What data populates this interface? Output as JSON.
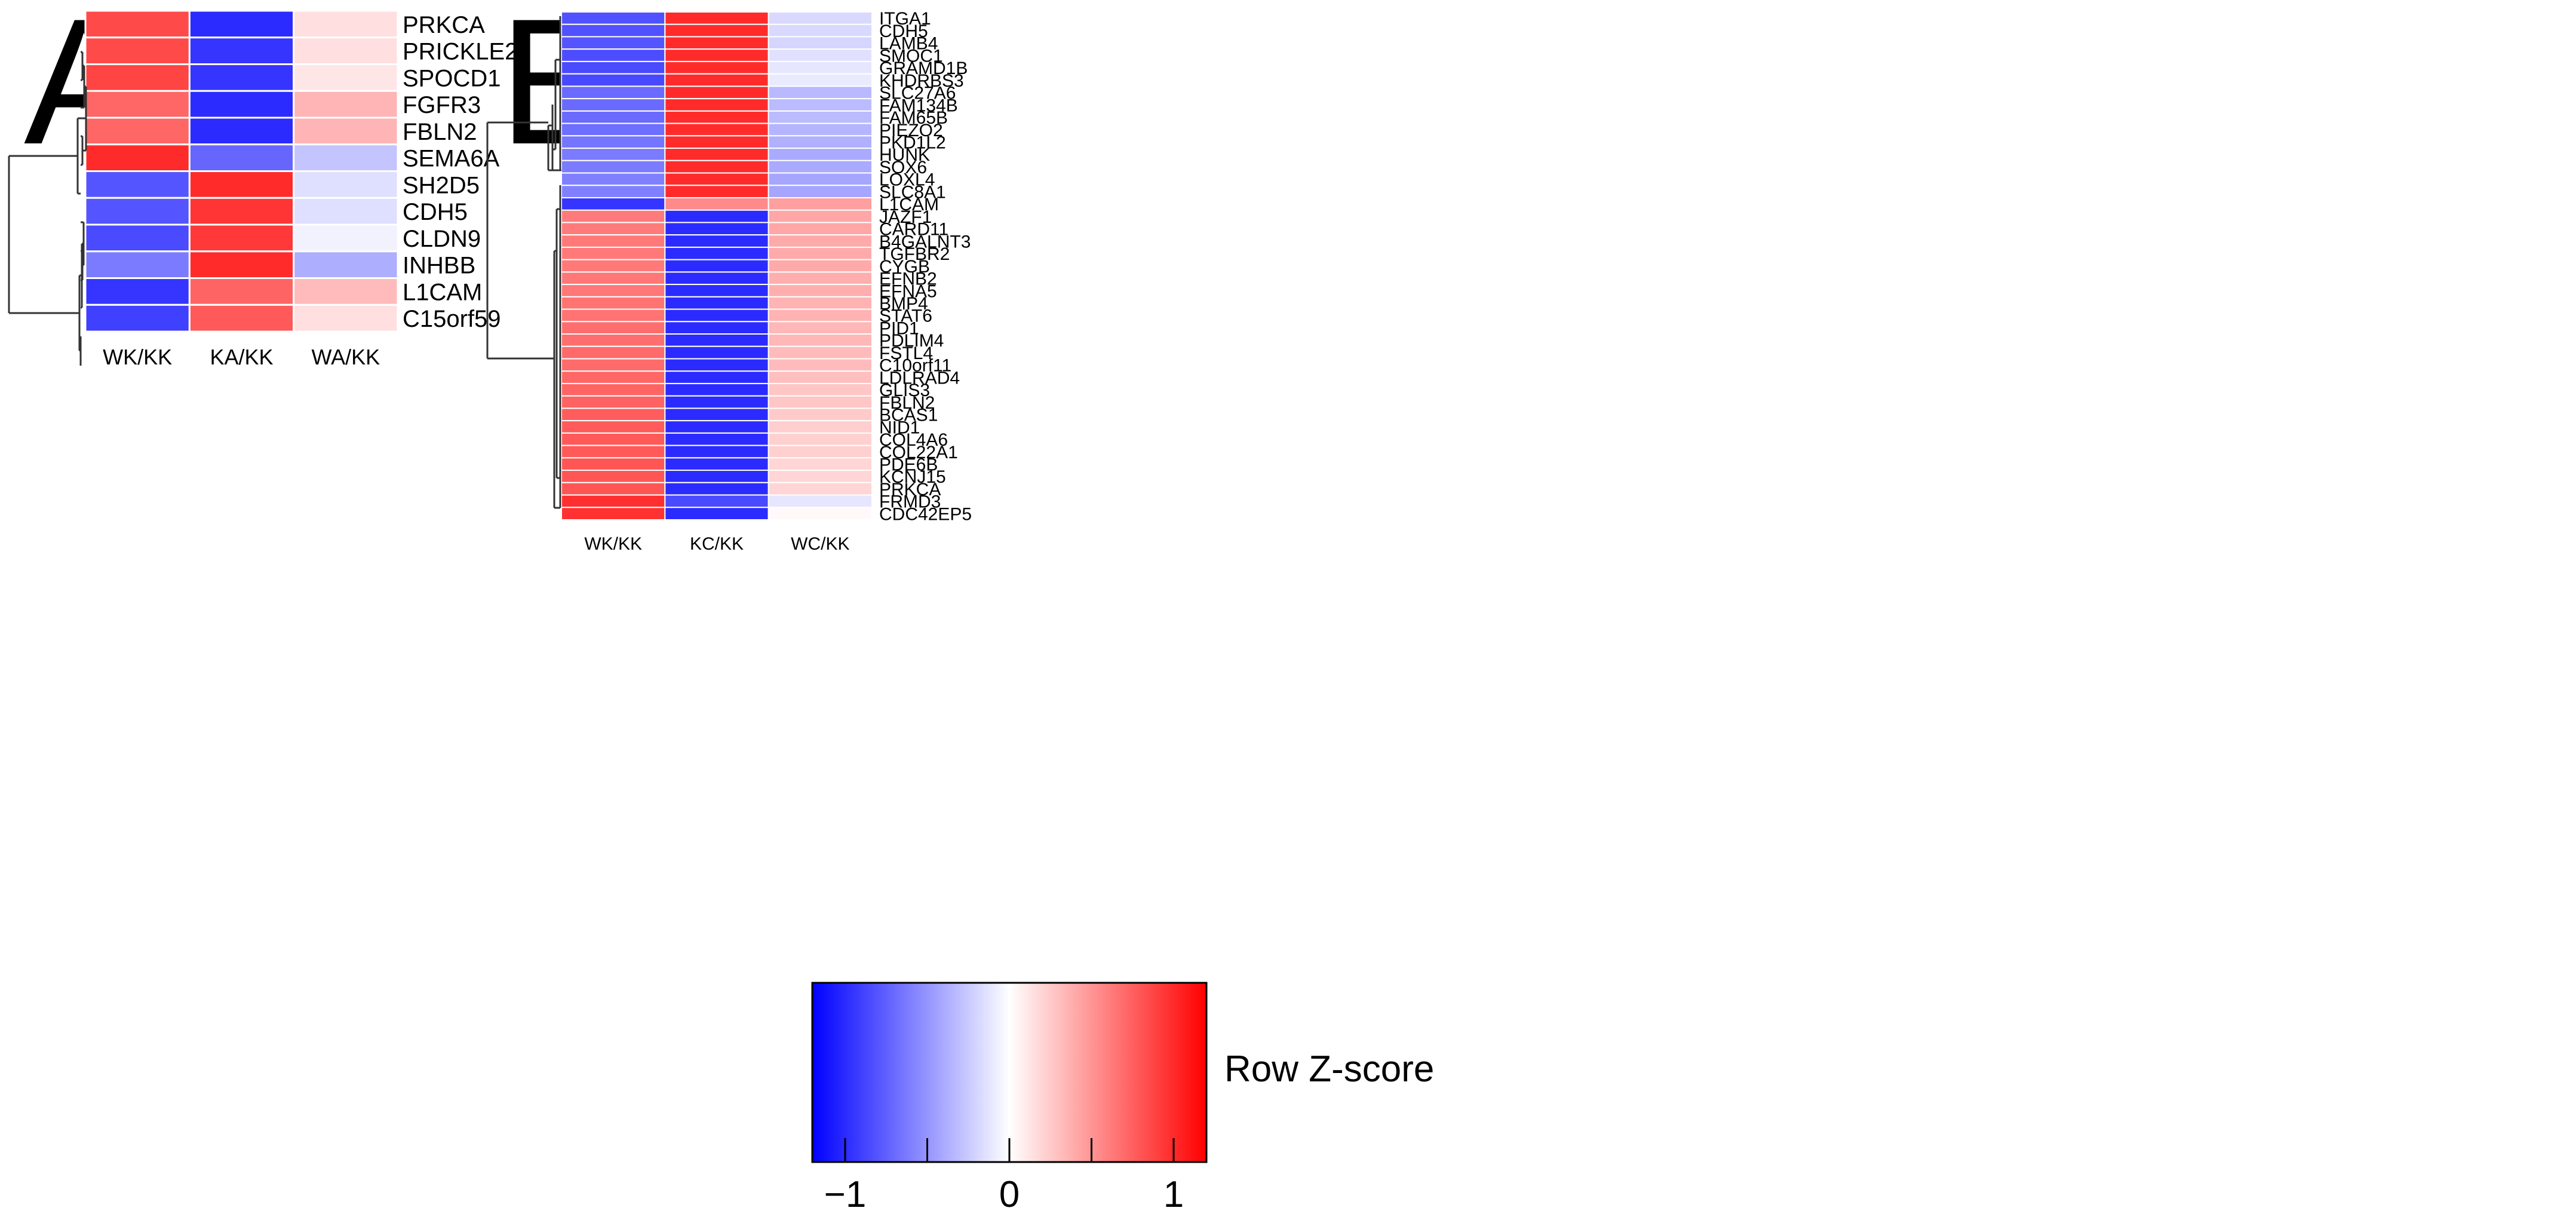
{
  "chart_data": [
    {
      "type": "heatmap",
      "panel": "A",
      "columns": [
        "WK/KK",
        "KA/KK",
        "WA/KK"
      ],
      "rows": [
        "PRKCA",
        "PRICKLE2",
        "SPOCD1",
        "FGFR3",
        "FBLN2",
        "SEMA6A",
        "SH2D5",
        "CDH5",
        "CLDN9",
        "INHBB",
        "L1CAM",
        "C15orf59"
      ],
      "values": [
        [
          0.85,
          -1.0,
          0.15
        ],
        [
          0.85,
          -0.95,
          0.15
        ],
        [
          0.88,
          -0.95,
          0.12
        ],
        [
          0.72,
          -1.0,
          0.35
        ],
        [
          0.72,
          -1.0,
          0.35
        ],
        [
          1.0,
          -0.72,
          -0.28
        ],
        [
          -0.8,
          1.0,
          -0.15
        ],
        [
          -0.8,
          0.95,
          -0.15
        ],
        [
          -0.85,
          0.93,
          -0.06
        ],
        [
          -0.62,
          1.0,
          -0.38
        ],
        [
          -0.95,
          0.73,
          0.32
        ],
        [
          -0.9,
          0.78,
          0.15
        ]
      ],
      "color_scale": {
        "low": "#0000ff",
        "mid": "#ffffff",
        "high": "#ff0000",
        "range": [
          -1.2,
          1.2
        ]
      }
    },
    {
      "type": "heatmap",
      "panel": "B",
      "columns": [
        "WK/KK",
        "KC/KK",
        "WC/KK"
      ],
      "rows": [
        "ITGA1",
        "CDH5",
        "LAMB4",
        "SMOC1",
        "GRAMD1B",
        "KHDRBS3",
        "SLC27A6",
        "FAM134B",
        "FAM65B",
        "PIEZO2",
        "PKD1L2",
        "HUNK",
        "SOX6",
        "LOXL4",
        "SLC8A1",
        "L1CAM",
        "JAZF1",
        "CARD11",
        "B4GALNT3",
        "TGFBR2",
        "CYGB",
        "EFNB2",
        "EFNA5",
        "BMP4",
        "STAT6",
        "PID1",
        "PDLIM4",
        "FSTL4",
        "C10orf11",
        "LDLRAD4",
        "GLIS3",
        "FBLN2",
        "BCAS1",
        "NID1",
        "COL4A6",
        "COL22A1",
        "PDE6B",
        "KCNJ15",
        "PRKCA",
        "FRMD3",
        "CDC42EP5"
      ],
      "values": [
        [
          -0.82,
          1.0,
          -0.18
        ],
        [
          -0.82,
          1.0,
          -0.18
        ],
        [
          -0.8,
          1.0,
          -0.2
        ],
        [
          -0.84,
          1.0,
          -0.14
        ],
        [
          -0.85,
          1.0,
          -0.12
        ],
        [
          -0.86,
          1.0,
          -0.1
        ],
        [
          -0.7,
          1.0,
          -0.33
        ],
        [
          -0.7,
          1.0,
          -0.32
        ],
        [
          -0.7,
          1.0,
          -0.32
        ],
        [
          -0.68,
          1.0,
          -0.35
        ],
        [
          -0.65,
          1.0,
          -0.37
        ],
        [
          -0.62,
          1.0,
          -0.4
        ],
        [
          -0.62,
          1.0,
          -0.4
        ],
        [
          -0.6,
          1.0,
          -0.42
        ],
        [
          -0.6,
          1.0,
          -0.42
        ],
        [
          -0.95,
          0.55,
          0.45
        ],
        [
          0.62,
          -1.0,
          0.42
        ],
        [
          0.62,
          -1.0,
          0.42
        ],
        [
          0.63,
          -1.0,
          0.4
        ],
        [
          0.63,
          -1.0,
          0.4
        ],
        [
          0.63,
          -1.0,
          0.4
        ],
        [
          0.64,
          -1.0,
          0.38
        ],
        [
          0.64,
          -1.0,
          0.38
        ],
        [
          0.66,
          -1.0,
          0.36
        ],
        [
          0.66,
          -1.0,
          0.36
        ],
        [
          0.68,
          -1.0,
          0.34
        ],
        [
          0.68,
          -1.0,
          0.34
        ],
        [
          0.7,
          -1.0,
          0.32
        ],
        [
          0.7,
          -1.0,
          0.32
        ],
        [
          0.72,
          -1.0,
          0.3
        ],
        [
          0.73,
          -1.0,
          0.27
        ],
        [
          0.74,
          -1.0,
          0.27
        ],
        [
          0.76,
          -1.0,
          0.25
        ],
        [
          0.77,
          -1.0,
          0.23
        ],
        [
          0.78,
          -1.0,
          0.22
        ],
        [
          0.78,
          -1.0,
          0.22
        ],
        [
          0.8,
          -1.0,
          0.2
        ],
        [
          0.8,
          -1.0,
          0.2
        ],
        [
          0.8,
          -1.0,
          0.2
        ],
        [
          0.98,
          -0.85,
          -0.12
        ],
        [
          0.97,
          -1.0,
          0.03
        ]
      ],
      "color_scale": {
        "low": "#0000ff",
        "mid": "#ffffff",
        "high": "#ff0000",
        "range": [
          -1.2,
          1.2
        ]
      }
    }
  ],
  "legend": {
    "title": "Row Z-score",
    "ticks": [
      -1,
      0,
      1
    ],
    "tick_labels": [
      "−1",
      "0",
      "1"
    ],
    "range": [
      -1.2,
      1.2
    ],
    "low": "#0000ff",
    "mid": "#ffffff",
    "high": "#ff0000"
  }
}
